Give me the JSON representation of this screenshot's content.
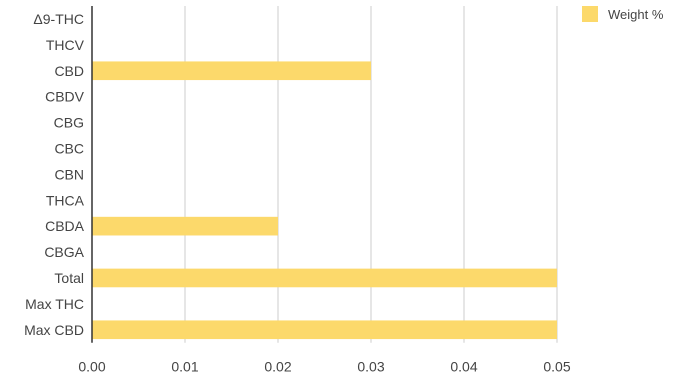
{
  "chart_data": {
    "type": "bar",
    "orientation": "horizontal",
    "categories": [
      "Δ9-THC",
      "THCV",
      "CBD",
      "CBDV",
      "CBG",
      "CBC",
      "CBN",
      "THCA",
      "CBDA",
      "CBGA",
      "Total",
      "Max THC",
      "Max CBD"
    ],
    "series": [
      {
        "name": "Weight %",
        "color": "#fcd96b",
        "values": [
          0,
          0,
          0.03,
          0,
          0,
          0,
          0,
          0,
          0.02,
          0,
          0.05,
          0,
          0.05
        ]
      }
    ],
    "xlim": [
      0,
      0.05
    ],
    "xticks": [
      "0.00",
      "0.01",
      "0.02",
      "0.03",
      "0.04",
      "0.05"
    ],
    "grid": true,
    "legend_position": "top-right"
  }
}
